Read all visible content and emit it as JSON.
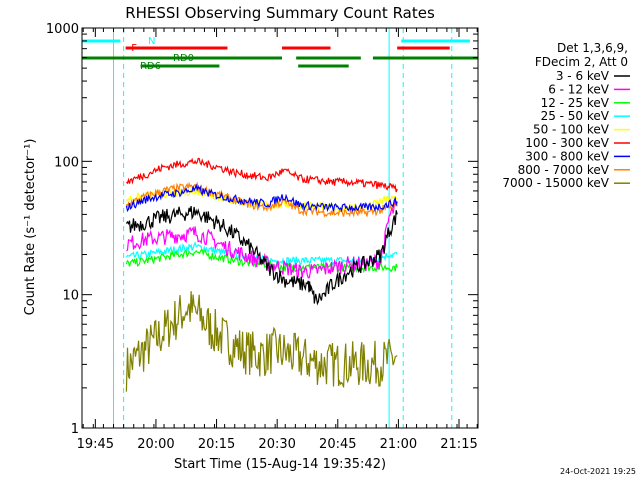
{
  "colors": {
    "cyan": "#00ffff",
    "red": "#ff0000",
    "green": "#008000",
    "olive": "#808000"
  },
  "footer_date": "24-Oct-2021 19:25",
  "chart_data": {
    "type": "line",
    "title": "RHESSI Observing Summary Count Rates",
    "xlabel": "Start Time (15-Aug-14 19:35:42)",
    "ylabel": "Count Rate (s⁻¹ detector⁻¹)",
    "yscale": "log",
    "ylim": [
      1,
      1000
    ],
    "xlim_minutes": [
      6,
      104
    ],
    "x_ticks": [
      {
        "label": "19:45",
        "min": 9.3
      },
      {
        "label": "20:00",
        "min": 24.3
      },
      {
        "label": "20:15",
        "min": 39.3
      },
      {
        "label": "20:30",
        "min": 54.3
      },
      {
        "label": "20:45",
        "min": 69.3
      },
      {
        "label": "21:00",
        "min": 84.3
      },
      {
        "label": "21:15",
        "min": 99.3
      }
    ],
    "y_ticks": [
      {
        "label": "1",
        "value": 1
      },
      {
        "label": "10",
        "value": 10
      },
      {
        "label": "100",
        "value": 100
      },
      {
        "label": "1000",
        "value": 1000
      }
    ],
    "legend_header": [
      "Det 1,3,6,9,",
      "FDecim 2, Att 0"
    ],
    "series": [
      {
        "name": "3 - 6 keV",
        "color": "#000000",
        "x": [
          17,
          22,
          26,
          30,
          34,
          37,
          40,
          44,
          48,
          52,
          56,
          60,
          62,
          63,
          64,
          66,
          68,
          72,
          76,
          80,
          82,
          84
        ],
        "y": [
          32,
          35,
          38,
          40,
          42,
          38,
          34,
          28,
          22,
          16,
          13,
          12,
          12,
          10,
          9,
          10,
          12,
          15,
          17,
          20,
          30,
          40
        ]
      },
      {
        "name": "6 - 12 keV",
        "color": "#ff00ff",
        "x": [
          17,
          22,
          26,
          30,
          34,
          37,
          40,
          44,
          48,
          52,
          56,
          60,
          64,
          68,
          72,
          76,
          80,
          82,
          84
        ],
        "y": [
          24,
          26,
          27,
          28,
          29,
          27,
          24,
          21,
          19,
          17,
          16,
          15,
          15,
          16,
          17,
          17,
          18,
          38,
          48
        ]
      },
      {
        "name": "12 - 25 keV",
        "color": "#00ff00",
        "x": [
          17,
          22,
          26,
          30,
          34,
          37,
          40,
          44,
          48,
          52,
          56,
          60,
          64,
          68,
          72,
          76,
          80,
          82,
          84
        ],
        "y": [
          17,
          18,
          19,
          20,
          21,
          20,
          19,
          18,
          17,
          17,
          16,
          16,
          16,
          16,
          16,
          16,
          16,
          16,
          16
        ]
      },
      {
        "name": "25 - 50 keV",
        "color": "#00ffff",
        "x": [
          17,
          22,
          26,
          30,
          34,
          37,
          40,
          44,
          48,
          52,
          56,
          60,
          64,
          68,
          72,
          76,
          80,
          82,
          84
        ],
        "y": [
          19,
          20,
          21,
          22,
          23,
          22,
          21,
          20,
          19,
          18,
          18,
          18,
          18,
          18,
          18,
          18,
          19,
          20,
          20
        ]
      },
      {
        "name": "50 - 100 keV",
        "color": "#ffff00",
        "x": [
          17,
          22,
          26,
          30,
          34,
          37,
          40,
          44,
          48,
          52,
          56,
          60,
          64,
          68,
          72,
          76,
          80,
          82,
          84
        ],
        "y": [
          52,
          55,
          57,
          58,
          60,
          57,
          54,
          50,
          48,
          47,
          48,
          47,
          46,
          45,
          45,
          45,
          50,
          52,
          52
        ]
      },
      {
        "name": "100 - 300 keV",
        "color": "#ff0000",
        "x": [
          17,
          22,
          26,
          30,
          34,
          37,
          40,
          44,
          48,
          52,
          56,
          60,
          64,
          68,
          72,
          76,
          80,
          82,
          84
        ],
        "y": [
          70,
          80,
          90,
          95,
          100,
          95,
          90,
          82,
          78,
          75,
          85,
          74,
          72,
          70,
          70,
          68,
          66,
          64,
          62
        ]
      },
      {
        "name": "300 - 800 keV",
        "color": "#0000ff",
        "x": [
          17,
          22,
          26,
          30,
          34,
          37,
          40,
          44,
          48,
          52,
          56,
          60,
          64,
          68,
          72,
          76,
          80,
          82,
          84
        ],
        "y": [
          45,
          52,
          56,
          58,
          62,
          58,
          55,
          52,
          50,
          48,
          55,
          47,
          46,
          45,
          45,
          45,
          46,
          48,
          50
        ]
      },
      {
        "name": "800 - 7000 keV",
        "color": "#ff8000",
        "x": [
          17,
          22,
          26,
          30,
          34,
          37,
          40,
          44,
          48,
          52,
          56,
          60,
          64,
          68,
          72,
          76,
          80,
          82,
          84
        ],
        "y": [
          47,
          55,
          60,
          63,
          65,
          60,
          56,
          51,
          47,
          45,
          50,
          43,
          42,
          41,
          41,
          41,
          43,
          45,
          46
        ]
      },
      {
        "name": "7000 - 15000 keV",
        "color": "#808000",
        "x": [
          17,
          20,
          24,
          28,
          32,
          35,
          38,
          42,
          46,
          50,
          54,
          58,
          62,
          66,
          70,
          74,
          78,
          82,
          84
        ],
        "y": [
          2.8,
          3.5,
          4.5,
          6,
          8,
          7,
          5.5,
          4.5,
          3.8,
          3.5,
          3.8,
          3.5,
          3.2,
          3.0,
          3.0,
          3.0,
          3.0,
          3.2,
          3.5
        ]
      }
    ],
    "markers": {
      "vertical_lines": [
        {
          "min": 13.8,
          "style": "solid"
        },
        {
          "min": 16.3,
          "style": "dashed"
        },
        {
          "min": 82.0,
          "style": "solid"
        },
        {
          "min": 85.5,
          "style": "dashed"
        },
        {
          "min": 97.5,
          "style": "dashed"
        }
      ],
      "flags": [
        {
          "label": "N",
          "color": "#00ffff",
          "level": 1,
          "segments": [
            [
              6,
              15.5
            ],
            [
              85,
              102
            ]
          ]
        },
        {
          "label": "F",
          "color": "#ff0000",
          "level": 2,
          "segments": [
            [
              16.8,
              42
            ],
            [
              55.5,
              67.5
            ],
            [
              84,
              97
            ]
          ]
        },
        {
          "label": "RD0",
          "color": "#008000",
          "level": 3,
          "segments": [
            [
              6,
              55.5
            ],
            [
              59,
              75
            ],
            [
              78,
              104
            ]
          ]
        },
        {
          "label": "RD6",
          "color": "#008000",
          "level": 4,
          "segments": [
            [
              20.5,
              40
            ],
            [
              59.5,
              72
            ]
          ]
        }
      ]
    }
  }
}
